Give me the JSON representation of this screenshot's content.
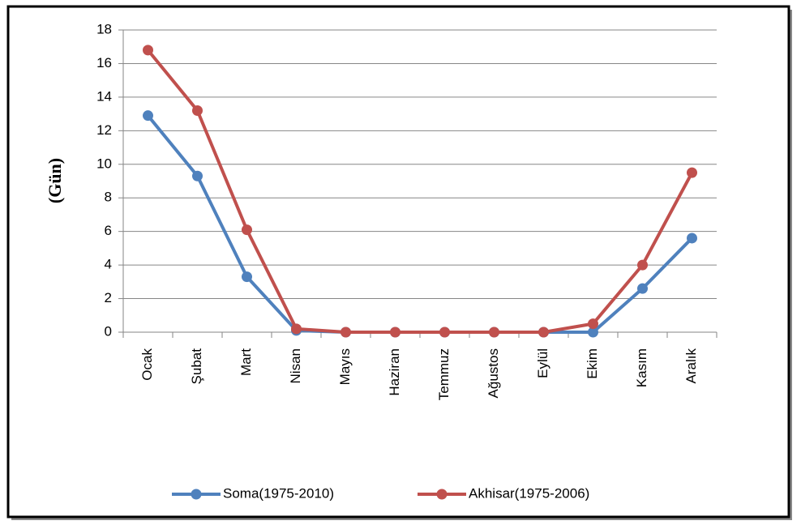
{
  "chart_data": {
    "type": "line",
    "y_label": "(Gün)",
    "categories": [
      "Ocak",
      "Şubat",
      "Mart",
      "Nisan",
      "Mayıs",
      "Haziran",
      "Temmuz",
      "Ağustos",
      "Eylül",
      "Ekim",
      "Kasım",
      "Aralık"
    ],
    "series": [
      {
        "name": "Soma(1975-2010)",
        "color": "#4f81bd",
        "values": [
          12.9,
          9.3,
          3.3,
          0.1,
          0,
          0,
          0,
          0,
          0,
          0,
          2.6,
          5.6
        ]
      },
      {
        "name": "Akhisar(1975-2006)",
        "color": "#c0504d",
        "values": [
          16.8,
          13.2,
          6.1,
          0.2,
          0,
          0,
          0,
          0,
          0,
          0.5,
          4,
          9.5
        ]
      }
    ],
    "ylim": [
      0,
      18
    ],
    "yticks": [
      0,
      2,
      4,
      6,
      8,
      10,
      12,
      14,
      16,
      18
    ],
    "grid": true,
    "legend": "bottom"
  }
}
